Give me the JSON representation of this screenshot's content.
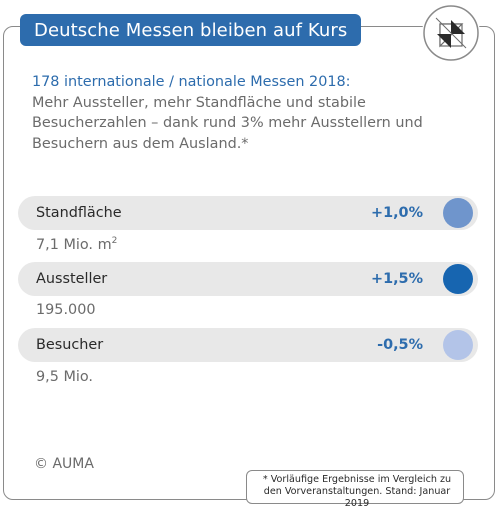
{
  "header": {
    "title": "Deutsche Messen bleiben auf Kurs"
  },
  "intro": {
    "lead": "178 internationale / nationale Messen 2018:",
    "text": "Mehr Aussteller, mehr Standfläche und stabile Besucherzahlen – dank rund 3% mehr Ausstellern und Besuchern aus dem Ausland.*"
  },
  "metrics": [
    {
      "label": "Standfläche",
      "change": "+1,0%",
      "value": "7,1 Mio. m",
      "value_sup": "2",
      "dot_color": "#6f95cc"
    },
    {
      "label": "Aussteller",
      "change": "+1,5%",
      "value": "195.000",
      "value_sup": "",
      "dot_color": "#1765b0"
    },
    {
      "label": "Besucher",
      "change": "-0,5%",
      "value": "9,5 Mio.",
      "value_sup": "",
      "dot_color": "#b3c4e8"
    }
  ],
  "footer": {
    "copyright": "© AUMA",
    "footnote": "* Vorläufige Ergebnisse im Vergleich zu den Vorveranstaltungen. Stand: Januar 2019"
  },
  "colors": {
    "brand_blue": "#2d6cad",
    "bar_background": "#e8e8e8"
  },
  "icons": {
    "logo": "auma-logo-icon"
  }
}
